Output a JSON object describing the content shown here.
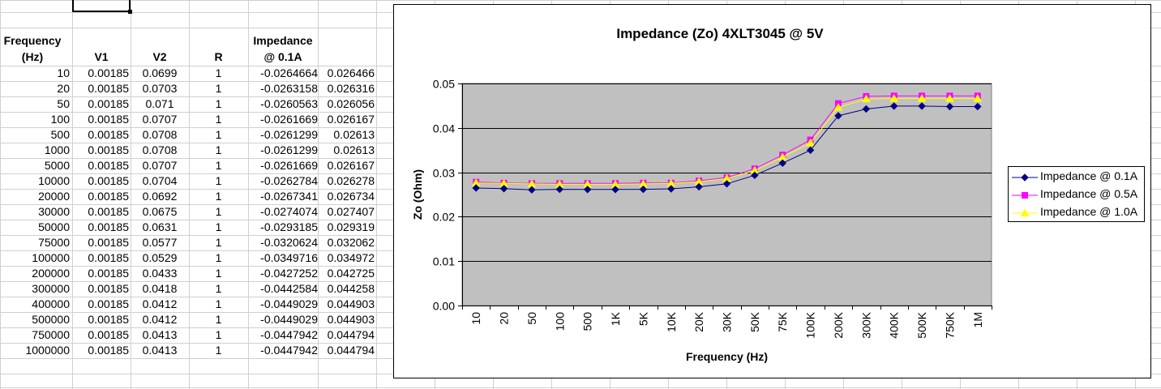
{
  "sheet": {
    "headers": {
      "frequency": [
        "Frequency",
        "(Hz)"
      ],
      "v1": "V1",
      "v2": "V2",
      "r": "R",
      "impedance": [
        "Impedance",
        "@ 0.1A"
      ]
    },
    "rows": [
      [
        "10",
        "0.00185",
        "0.0699",
        "1",
        "-0.0264664",
        "0.026466"
      ],
      [
        "20",
        "0.00185",
        "0.0703",
        "1",
        "-0.0263158",
        "0.026316"
      ],
      [
        "50",
        "0.00185",
        "0.071",
        "1",
        "-0.0260563",
        "0.026056"
      ],
      [
        "100",
        "0.00185",
        "0.0707",
        "1",
        "-0.0261669",
        "0.026167"
      ],
      [
        "500",
        "0.00185",
        "0.0708",
        "1",
        "-0.0261299",
        "0.02613"
      ],
      [
        "1000",
        "0.00185",
        "0.0708",
        "1",
        "-0.0261299",
        "0.02613"
      ],
      [
        "5000",
        "0.00185",
        "0.0707",
        "1",
        "-0.0261669",
        "0.026167"
      ],
      [
        "10000",
        "0.00185",
        "0.0704",
        "1",
        "-0.0262784",
        "0.026278"
      ],
      [
        "20000",
        "0.00185",
        "0.0692",
        "1",
        "-0.0267341",
        "0.026734"
      ],
      [
        "30000",
        "0.00185",
        "0.0675",
        "1",
        "-0.0274074",
        "0.027407"
      ],
      [
        "50000",
        "0.00185",
        "0.0631",
        "1",
        "-0.0293185",
        "0.029319"
      ],
      [
        "75000",
        "0.00185",
        "0.0577",
        "1",
        "-0.0320624",
        "0.032062"
      ],
      [
        "100000",
        "0.00185",
        "0.0529",
        "1",
        "-0.0349716",
        "0.034972"
      ],
      [
        "200000",
        "0.00185",
        "0.0433",
        "1",
        "-0.0427252",
        "0.042725"
      ],
      [
        "300000",
        "0.00185",
        "0.0418",
        "1",
        "-0.0442584",
        "0.044258"
      ],
      [
        "400000",
        "0.00185",
        "0.0412",
        "1",
        "-0.0449029",
        "0.044903"
      ],
      [
        "500000",
        "0.00185",
        "0.0412",
        "1",
        "-0.0449029",
        "0.044903"
      ],
      [
        "750000",
        "0.00185",
        "0.0413",
        "1",
        "-0.0447942",
        "0.044794"
      ],
      [
        "1000000",
        "0.00185",
        "0.0413",
        "1",
        "-0.0447942",
        "0.044794"
      ]
    ]
  },
  "chart_data": {
    "type": "line",
    "title": "Impedance (Zo) 4XLT3045 @ 5V",
    "xlabel": "Frequency (Hz)",
    "ylabel": "Zo (Ohm)",
    "categories": [
      "10",
      "20",
      "50",
      "100",
      "500",
      "1K",
      "5K",
      "10K",
      "20K",
      "30K",
      "50K",
      "75K",
      "100K",
      "200K",
      "300K",
      "400K",
      "500K",
      "750K",
      "1M"
    ],
    "ylim": [
      0,
      0.05
    ],
    "yticks": [
      "0.00",
      "0.01",
      "0.02",
      "0.03",
      "0.04",
      "0.05"
    ],
    "grid": true,
    "legend_position": "right",
    "plot_background": "#c0c0c0",
    "series": [
      {
        "name": "Impedance @ 0.1A",
        "color": "#000080",
        "marker": "diamond",
        "values": [
          0.026466,
          0.026316,
          0.026056,
          0.026167,
          0.02613,
          0.02613,
          0.026167,
          0.026278,
          0.026734,
          0.027407,
          0.029319,
          0.032062,
          0.034972,
          0.042725,
          0.044258,
          0.044903,
          0.044903,
          0.044794,
          0.044794
        ]
      },
      {
        "name": "Impedance @ 0.5A",
        "color": "#ff00ff",
        "marker": "square",
        "values": [
          0.0278,
          0.0276,
          0.0275,
          0.0275,
          0.0275,
          0.0275,
          0.0276,
          0.0276,
          0.0281,
          0.0288,
          0.0308,
          0.0339,
          0.0373,
          0.0455,
          0.0471,
          0.0472,
          0.0472,
          0.0472,
          0.0472
        ]
      },
      {
        "name": "Impedance @ 1.0A",
        "color": "#ffff00",
        "marker": "triangle",
        "values": [
          0.0276,
          0.0275,
          0.0274,
          0.0273,
          0.0273,
          0.0273,
          0.0274,
          0.0275,
          0.0279,
          0.0286,
          0.0304,
          0.0334,
          0.0366,
          0.0446,
          0.0465,
          0.0466,
          0.0466,
          0.0466,
          0.0466
        ]
      }
    ]
  }
}
